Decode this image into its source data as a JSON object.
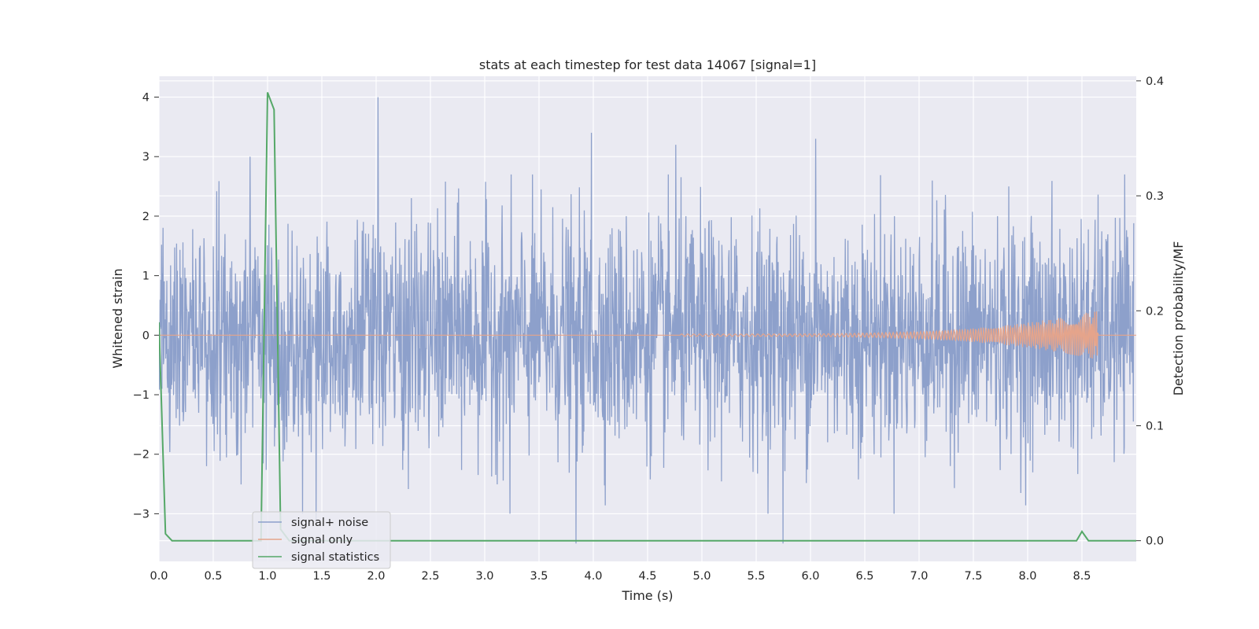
{
  "chart_data": {
    "type": "line",
    "title": "stats at each timestep for test data 14067 [signal=1]",
    "xlabel": "Time (s)",
    "ylabel": "Whitened strain",
    "y2label": "Detection probability/MF",
    "xlim": [
      0.0,
      9.0
    ],
    "ylim": [
      -3.8,
      4.35
    ],
    "y2lim": [
      -0.018,
      0.404
    ],
    "xticks": [
      "0.0",
      "0.5",
      "1.0",
      "1.5",
      "2.0",
      "2.5",
      "3.0",
      "3.5",
      "4.0",
      "4.5",
      "5.0",
      "5.5",
      "6.0",
      "6.5",
      "7.0",
      "7.5",
      "8.0",
      "8.5"
    ],
    "yticks": [
      "4",
      "3",
      "2",
      "1",
      "0",
      "−1",
      "−2",
      "−3"
    ],
    "y2ticks": [
      "0.4",
      "0.3",
      "0.2",
      "0.1",
      "0.0"
    ],
    "grid": true,
    "legend_position": "lower-left",
    "series": [
      {
        "name": "signal+ noise",
        "axis": "left",
        "color": "#8da0cb",
        "description_kind": "noise",
        "notable_peaks": [
          [
            0.84,
            3.0
          ],
          [
            2.02,
            4.0
          ],
          [
            3.99,
            3.4
          ],
          [
            4.77,
            3.2
          ],
          [
            6.06,
            3.3
          ],
          [
            3.85,
            -3.5
          ],
          [
            5.76,
            -3.5
          ],
          [
            3.24,
            -3.0
          ],
          [
            1.45,
            -3.1
          ]
        ]
      },
      {
        "name": "signal only",
        "axis": "left",
        "color": "#e5a48b",
        "chirp_start": 4.8,
        "chirp_end": 8.65,
        "peak_amplitude": 0.4
      },
      {
        "name": "signal statistics",
        "axis": "right",
        "color": "#55a868",
        "x": [
          0.0,
          0.06,
          0.12,
          0.9,
          0.94,
          1.0,
          1.06,
          1.12,
          1.2,
          8.4,
          8.45,
          8.5,
          8.56,
          8.62,
          9.0
        ],
        "y": [
          0.19,
          0.006,
          0.0,
          0.0,
          0.0,
          0.39,
          0.375,
          0.01,
          0.0,
          0.0,
          0.0,
          0.008,
          0.0,
          0.0,
          0.0
        ]
      }
    ]
  }
}
